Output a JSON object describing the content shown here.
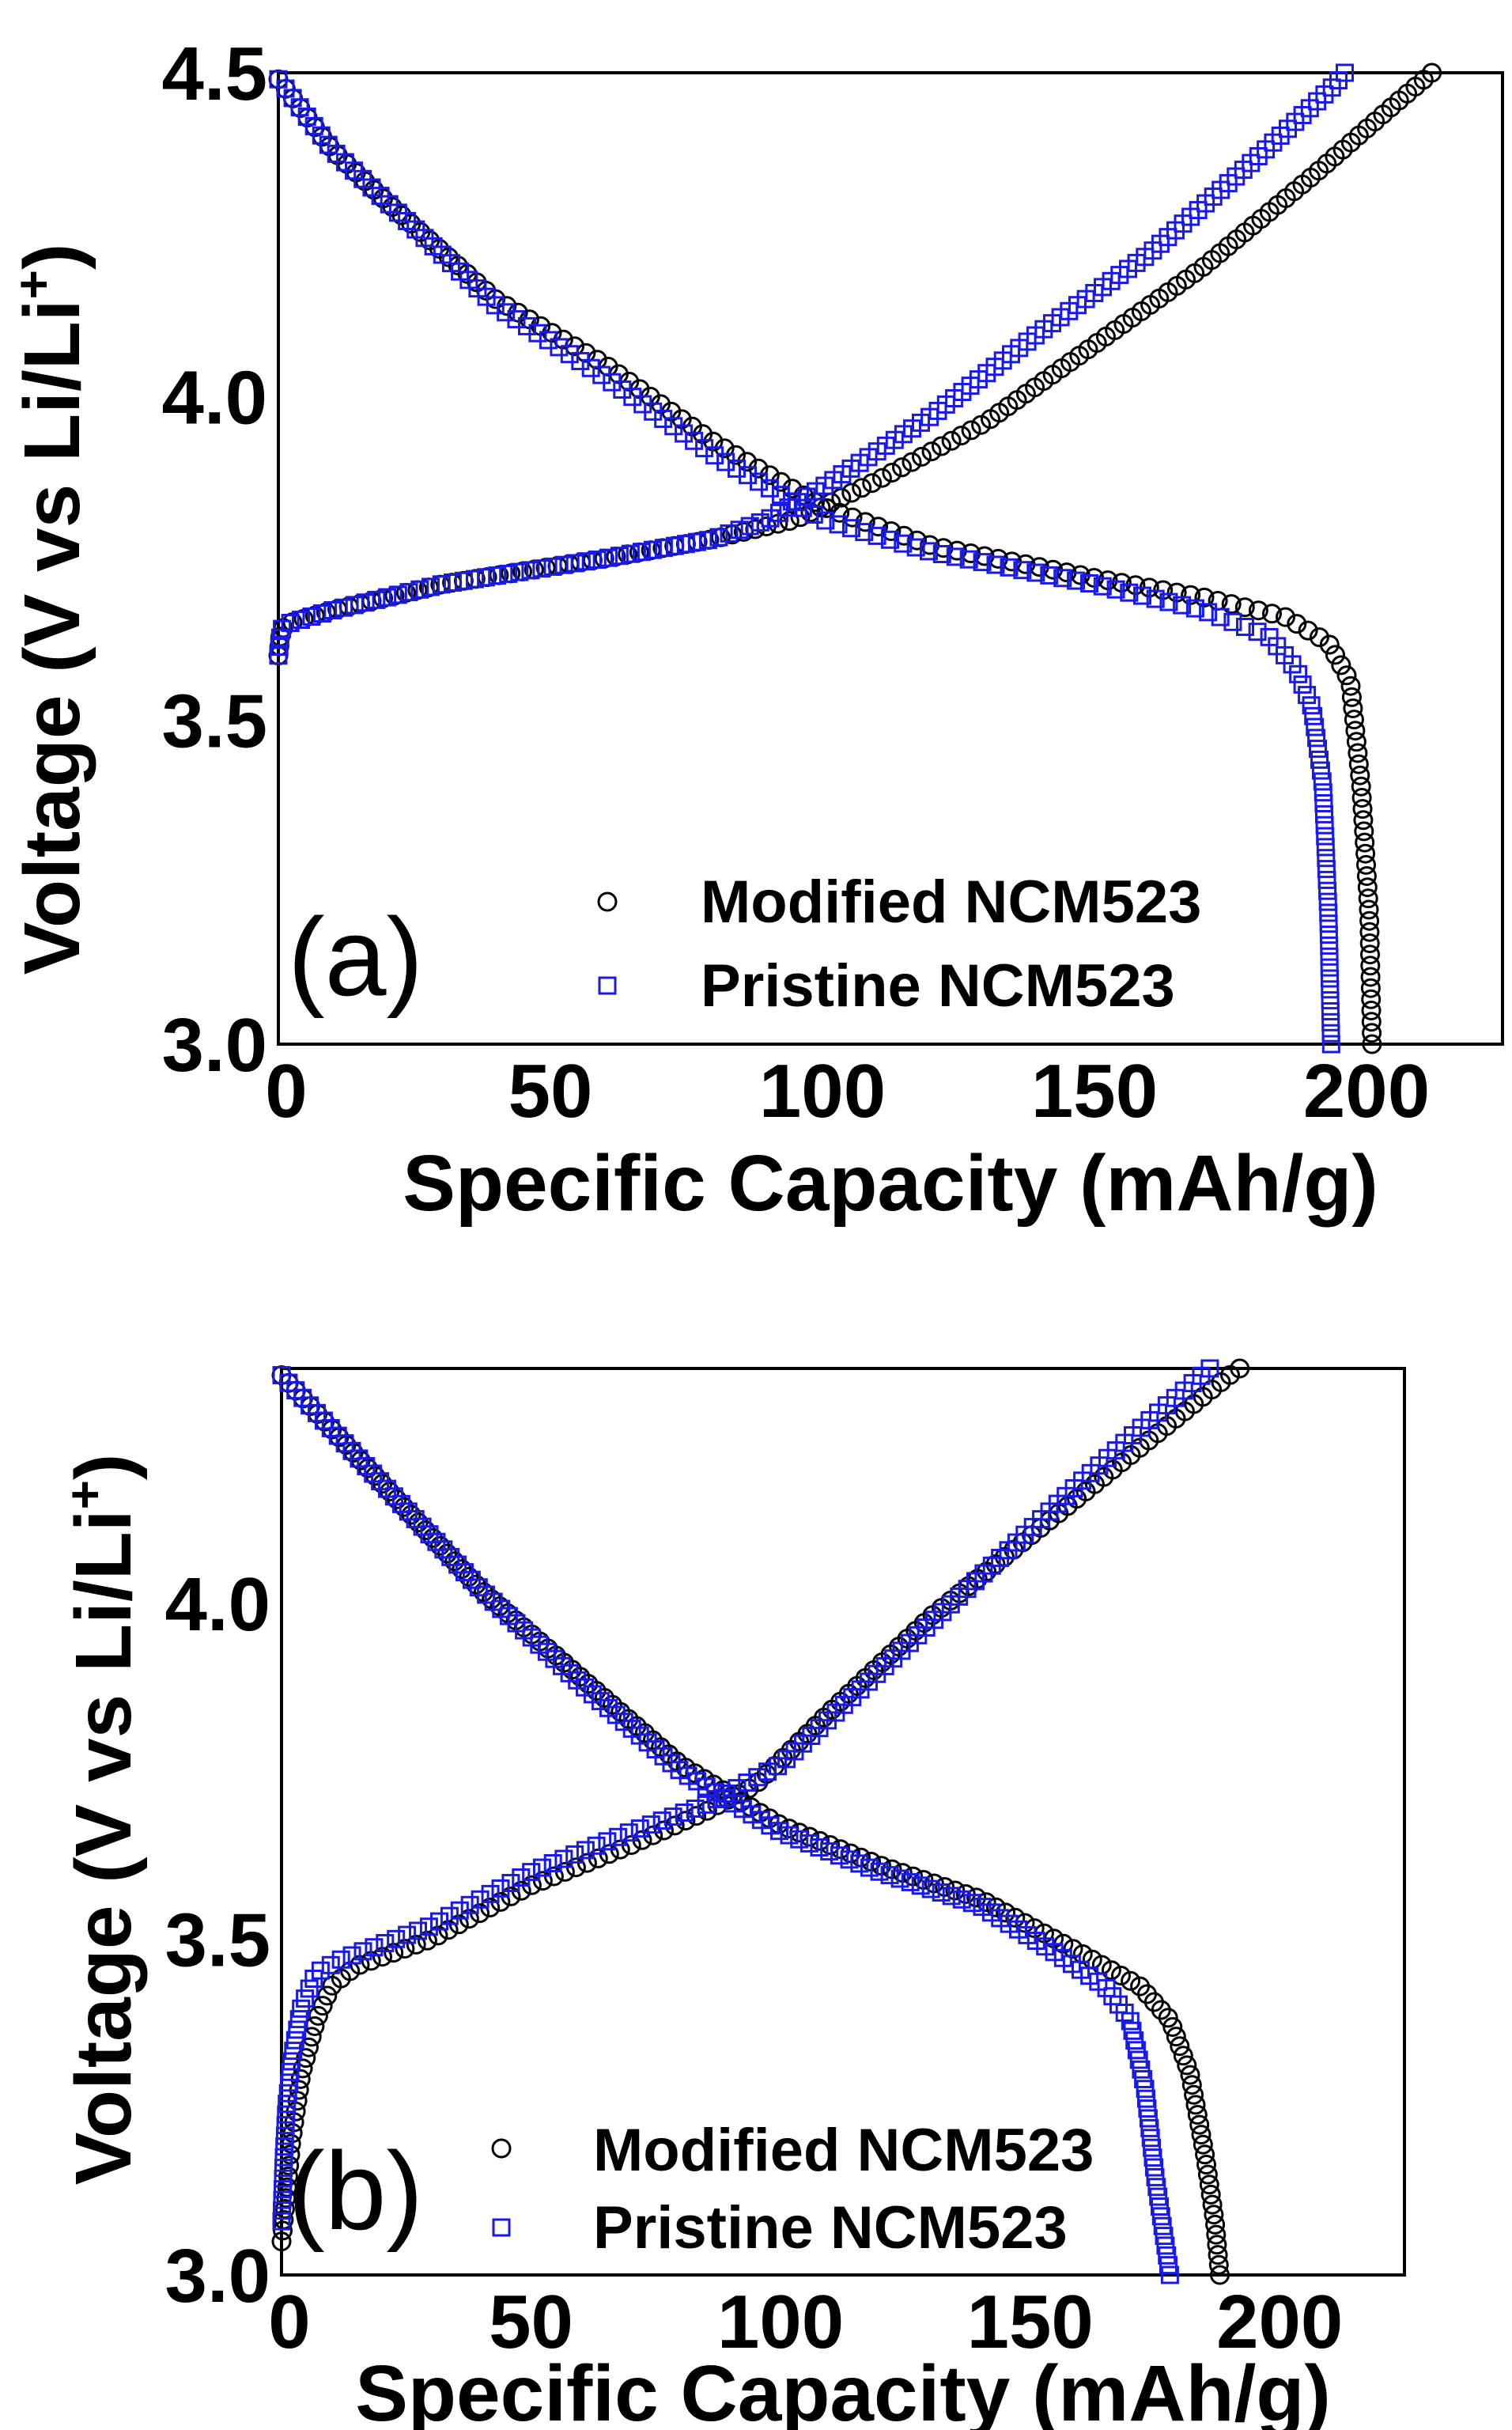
{
  "chart_data": [
    {
      "type": "scatter",
      "panel_label": "(a)",
      "xlabel": "Specific Capacity (mAh/g)",
      "ylabel": "Voltage (V vs Li/Li",
      "ylabel_superscript": "+",
      "ylabel_close": ")",
      "xlim": [
        0,
        225
      ],
      "ylim": [
        3.0,
        4.5
      ],
      "x_ticks": [
        0,
        50,
        100,
        150,
        200
      ],
      "x_tick_labels": [
        "0",
        "50",
        "100",
        "150",
        "200"
      ],
      "y_ticks": [
        3.0,
        3.5,
        4.0,
        4.5
      ],
      "y_tick_labels": [
        "3.0",
        "3.5",
        "4.0",
        "4.5"
      ],
      "legend_position": "bottom-center",
      "series": [
        {
          "name": "Modified NCM523",
          "marker": "circle",
          "color": "#000000",
          "charge": [
            [
              0,
              3.6
            ],
            [
              0.5,
              3.64
            ],
            [
              2,
              3.65
            ],
            [
              10,
              3.67
            ],
            [
              30,
              3.71
            ],
            [
              60,
              3.75
            ],
            [
              80,
              3.78
            ],
            [
              95,
              3.81
            ],
            [
              110,
              3.87
            ],
            [
              130,
              3.96
            ],
            [
              150,
              4.08
            ],
            [
              170,
              4.2
            ],
            [
              190,
              4.34
            ],
            [
              205,
              4.45
            ],
            [
              212,
              4.5
            ]
          ],
          "discharge": [
            [
              0,
              4.49
            ],
            [
              10,
              4.38
            ],
            [
              20,
              4.3
            ],
            [
              40,
              4.15
            ],
            [
              60,
              4.05
            ],
            [
              80,
              3.93
            ],
            [
              100,
              3.83
            ],
            [
              120,
              3.77
            ],
            [
              150,
              3.72
            ],
            [
              170,
              3.69
            ],
            [
              185,
              3.66
            ],
            [
              193,
              3.62
            ],
            [
              197,
              3.56
            ],
            [
              199,
              3.4
            ],
            [
              200.5,
              3.2
            ],
            [
              201,
              3.0
            ]
          ]
        },
        {
          "name": "Pristine NCM523",
          "marker": "square",
          "color": "#1a1ae6",
          "charge": [
            [
              0,
              3.6
            ],
            [
              0.5,
              3.64
            ],
            [
              2,
              3.65
            ],
            [
              10,
              3.67
            ],
            [
              30,
              3.71
            ],
            [
              60,
              3.75
            ],
            [
              80,
              3.78
            ],
            [
              90,
              3.81
            ],
            [
              100,
              3.86
            ],
            [
              120,
              3.97
            ],
            [
              140,
              4.1
            ],
            [
              160,
              4.22
            ],
            [
              180,
              4.37
            ],
            [
              194,
              4.48
            ],
            [
              196,
              4.5
            ]
          ],
          "discharge": [
            [
              0,
              4.49
            ],
            [
              10,
              4.38
            ],
            [
              20,
              4.3
            ],
            [
              40,
              4.14
            ],
            [
              60,
              4.03
            ],
            [
              80,
              3.91
            ],
            [
              100,
              3.81
            ],
            [
              120,
              3.76
            ],
            [
              150,
              3.71
            ],
            [
              170,
              3.67
            ],
            [
              182,
              3.63
            ],
            [
              187,
              3.58
            ],
            [
              190,
              3.52
            ],
            [
              192,
              3.4
            ],
            [
              193,
              3.2
            ],
            [
              193.5,
              3.0
            ]
          ]
        }
      ]
    },
    {
      "type": "scatter",
      "panel_label": "(b)",
      "xlabel": "Specific Capacity (mAh/g)",
      "ylabel": "Voltage (V vs Li/Li",
      "ylabel_superscript": "+",
      "ylabel_close": ")",
      "xlim": [
        0,
        225
      ],
      "ylim": [
        3.0,
        4.35
      ],
      "x_ticks": [
        0,
        50,
        100,
        150,
        200
      ],
      "x_tick_labels": [
        "0",
        "50",
        "100",
        "150",
        "200"
      ],
      "y_ticks": [
        3.0,
        3.5,
        4.0
      ],
      "y_tick_labels": [
        "3.0",
        "3.5",
        "4.0"
      ],
      "legend_position": "bottom-center",
      "series": [
        {
          "name": "Modified NCM523",
          "marker": "circle",
          "color": "#000000",
          "charge": [
            [
              0,
              3.05
            ],
            [
              1,
              3.12
            ],
            [
              2,
              3.2
            ],
            [
              4,
              3.3
            ],
            [
              7,
              3.38
            ],
            [
              10,
              3.43
            ],
            [
              15,
              3.46
            ],
            [
              30,
              3.5
            ],
            [
              50,
              3.58
            ],
            [
              70,
              3.64
            ],
            [
              85,
              3.69
            ],
            [
              95,
              3.73
            ],
            [
              110,
              3.84
            ],
            [
              130,
              3.98
            ],
            [
              150,
              4.1
            ],
            [
              170,
              4.22
            ],
            [
              190,
              4.34
            ],
            [
              192,
              4.35
            ]
          ],
          "discharge": [
            [
              0,
              4.34
            ],
            [
              10,
              4.26
            ],
            [
              20,
              4.18
            ],
            [
              40,
              4.02
            ],
            [
              60,
              3.89
            ],
            [
              80,
              3.76
            ],
            [
              100,
              3.67
            ],
            [
              120,
              3.61
            ],
            [
              140,
              3.56
            ],
            [
              160,
              3.48
            ],
            [
              172,
              3.43
            ],
            [
              178,
              3.38
            ],
            [
              182,
              3.3
            ],
            [
              185,
              3.18
            ],
            [
              187,
              3.08
            ],
            [
              188,
              3.0
            ]
          ]
        },
        {
          "name": "Pristine NCM523",
          "marker": "square",
          "color": "#1a1ae6",
          "charge": [
            [
              0,
              3.08
            ],
            [
              0.5,
              3.18
            ],
            [
              1,
              3.25
            ],
            [
              2,
              3.32
            ],
            [
              4,
              3.4
            ],
            [
              7,
              3.45
            ],
            [
              12,
              3.47
            ],
            [
              30,
              3.52
            ],
            [
              50,
              3.6
            ],
            [
              70,
              3.66
            ],
            [
              85,
              3.7
            ],
            [
              100,
              3.76
            ],
            [
              120,
              3.9
            ],
            [
              140,
              4.04
            ],
            [
              160,
              4.18
            ],
            [
              175,
              4.28
            ],
            [
              186,
              4.35
            ]
          ],
          "discharge": [
            [
              0,
              4.34
            ],
            [
              10,
              4.26
            ],
            [
              20,
              4.18
            ],
            [
              40,
              4.02
            ],
            [
              60,
              3.88
            ],
            [
              80,
              3.75
            ],
            [
              100,
              3.66
            ],
            [
              120,
              3.6
            ],
            [
              140,
              3.55
            ],
            [
              155,
              3.48
            ],
            [
              165,
              3.43
            ],
            [
              170,
              3.38
            ],
            [
              173,
              3.28
            ],
            [
              175,
              3.15
            ],
            [
              177,
              3.05
            ],
            [
              178,
              3.0
            ]
          ]
        }
      ]
    }
  ],
  "colors": {
    "modified": "#000000",
    "pristine": "#1a1ae6",
    "frame": "#000000",
    "background": "#ffffff"
  }
}
